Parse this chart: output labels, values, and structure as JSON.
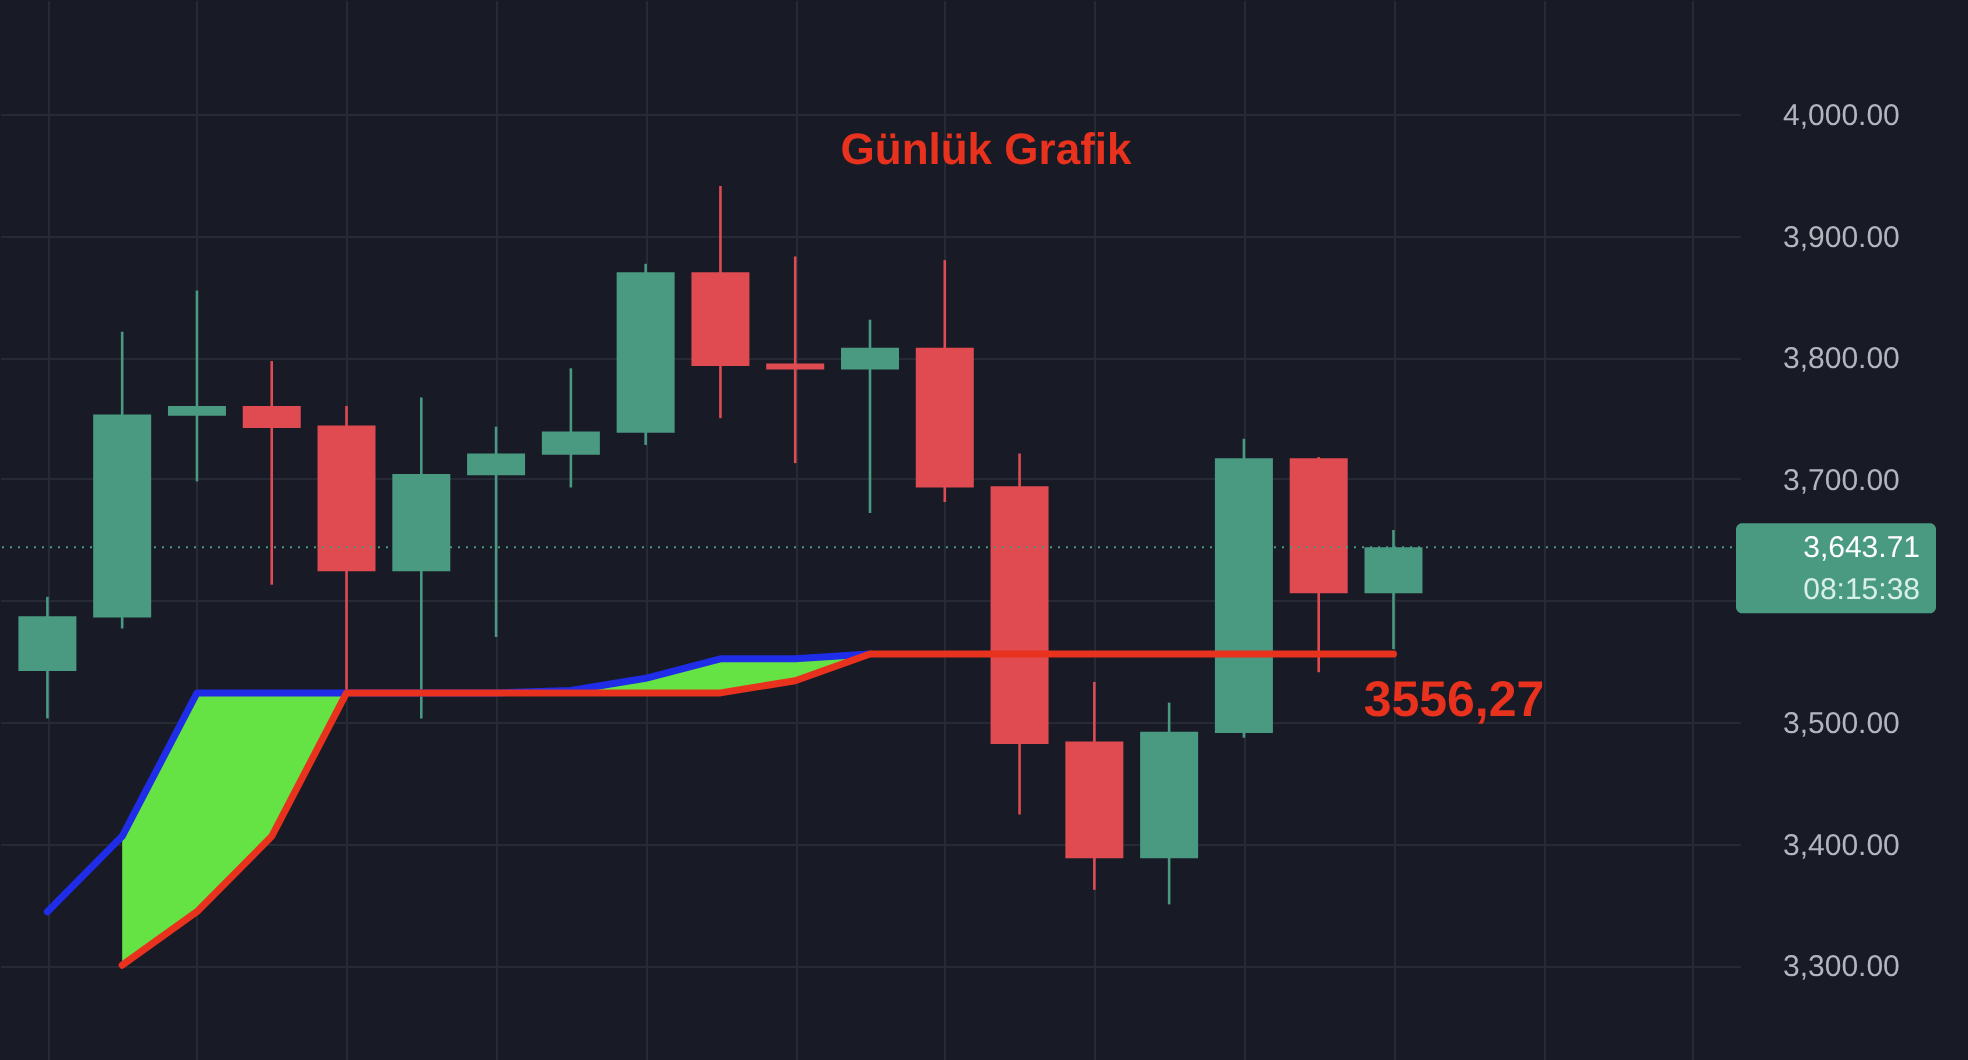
{
  "chart_data": {
    "type": "candlestick",
    "title": "Günlük Grafik",
    "categories": [
      null,
      null,
      null,
      null,
      null,
      null,
      null,
      null,
      null,
      null,
      null,
      null,
      null,
      null,
      null,
      null,
      null,
      null,
      null,
      null,
      null,
      null,
      null
    ],
    "ohlc": [
      [
        3542,
        3603,
        3503,
        3587
      ],
      [
        3586,
        3821,
        3577,
        3753
      ],
      [
        3752,
        3855,
        3698,
        3760
      ],
      [
        3760,
        3797,
        3613,
        3742
      ],
      [
        3744,
        3760,
        3524,
        3624
      ],
      [
        3624,
        3767,
        3503,
        3704
      ],
      [
        3703,
        3743,
        3570,
        3721
      ],
      [
        3720,
        3791,
        3693,
        3739
      ],
      [
        3738,
        3877,
        3728,
        3870
      ],
      [
        3870,
        3941,
        3750,
        3793
      ],
      [
        3795,
        3883,
        3713,
        3790
      ],
      [
        3790,
        3831,
        3672,
        3808
      ],
      [
        3808,
        3880,
        3681,
        3693
      ],
      [
        3694,
        3721,
        3424,
        3482
      ],
      [
        3484,
        3533,
        3362,
        3388
      ],
      [
        3388,
        3516,
        3350,
        3492
      ],
      [
        3491,
        3733,
        3487,
        3717
      ],
      [
        3717,
        3718,
        3541,
        3606
      ],
      [
        3606,
        3658,
        3560,
        3643.71
      ],
      null,
      null,
      null,
      null
    ],
    "colors": [
      "#4a9a82",
      "#4a9a82",
      "#4a9a82",
      "#e04b52",
      "#e04b52",
      "#4a9a82",
      "#4a9a82",
      "#4a9a82",
      "#4a9a82",
      "#e04b52",
      "#e04b52",
      "#4a9a82",
      "#e04b52",
      "#e04b52",
      "#e04b52",
      "#4a9a82",
      "#4a9a82",
      "#e04b52",
      "#4a9a82",
      null,
      null,
      null,
      null
    ],
    "series": [
      {
        "type": "line",
        "color": "#1f2de8",
        "values": [
          3344,
          3406,
          3524,
          3524,
          3524,
          3524,
          3524,
          3526,
          3536,
          3552,
          3552,
          3556,
          null,
          null,
          null,
          null,
          null,
          null,
          null,
          null,
          null,
          null,
          null
        ],
        "upper": [
          null,
          3406,
          3524,
          3524,
          3524,
          3524,
          3524,
          3526,
          3536,
          3552,
          3552,
          3556,
          null,
          null,
          null,
          null,
          null,
          null,
          null,
          null,
          null,
          null,
          null
        ],
        "lower": [
          null,
          3300,
          3344,
          3406,
          3524,
          3524,
          3524,
          3524,
          3524,
          3524,
          3534,
          3556,
          null,
          null,
          null,
          null,
          null,
          null,
          null,
          null,
          null,
          null,
          null
        ]
      },
      {
        "type": "line",
        "color": "#e8321e",
        "values": [
          null,
          3300,
          3344,
          3406,
          3524,
          3524,
          3524,
          3524,
          3524,
          3524,
          3534,
          3556,
          3556,
          3556,
          3556,
          3556,
          3556,
          3556,
          3556,
          null,
          null,
          null,
          null
        ]
      }
    ],
    "ylim": [
      3222,
      4094
    ],
    "yticks": [
      {
        "value": 3300,
        "label": "3,300.00"
      },
      {
        "value": 3400,
        "label": "3,400.00"
      },
      {
        "value": 3500,
        "label": "3,500.00"
      },
      {
        "value": 3600,
        "label": null
      },
      {
        "value": 3700,
        "label": "3,700.00"
      },
      {
        "value": 3800,
        "label": "3,800.00"
      },
      {
        "value": 3900,
        "label": "3,900.00"
      },
      {
        "value": 4000,
        "label": "4,000.00"
      }
    ],
    "ref_lines": [
      {
        "axis": "y",
        "value": 3643.71,
        "label": "3,643.71",
        "color": "#4a9a82",
        "line_style": "dotted"
      }
    ],
    "annotations": [
      "08:15:38",
      "3556,27"
    ],
    "grid": true,
    "tick_labels": "y",
    "line_style": "solid"
  }
}
